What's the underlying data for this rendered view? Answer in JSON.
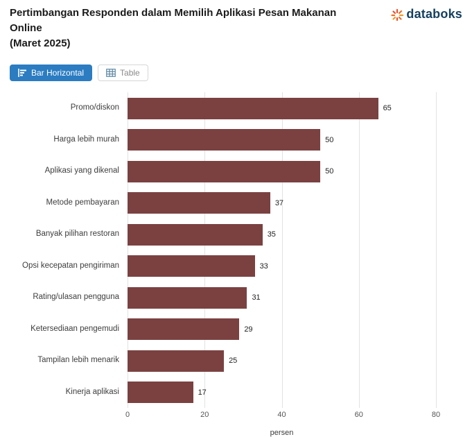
{
  "header": {
    "title_line1": "Pertimbangan Responden dalam Memilih Aplikasi Pesan Makanan Online",
    "title_line2": "(Maret 2025)",
    "brand": "databoks"
  },
  "toolbar": {
    "bar_horizontal_label": "Bar Horizontal",
    "table_label": "Table"
  },
  "colors": {
    "bar": "#7b4141",
    "active_button": "#2b7cc1",
    "brand_navy": "#16405f",
    "brand_orange": "#f26a21",
    "brand_red": "#e8502e",
    "gridline": "#e2e2e2"
  },
  "chart_data": {
    "type": "bar",
    "orientation": "horizontal",
    "title": "Pertimbangan Responden dalam Memilih Aplikasi Pesan Makanan Online (Maret 2025)",
    "categories": [
      "Promo/diskon",
      "Harga lebih murah",
      "Aplikasi yang dikenal",
      "Metode pembayaran",
      "Banyak pilihan restoran",
      "Opsi kecepatan pengiriman",
      "Rating/ulasan pengguna",
      "Ketersediaan pengemudi",
      "Tampilan lebih menarik",
      "Kinerja aplikasi"
    ],
    "values": [
      65,
      50,
      50,
      37,
      35,
      33,
      31,
      29,
      25,
      17
    ],
    "xlabel": "persen",
    "xlim": [
      0,
      80
    ],
    "xticks": [
      0,
      20,
      40,
      60,
      80
    ],
    "bar_color": "#7b4141",
    "grid": true,
    "legend": false
  }
}
